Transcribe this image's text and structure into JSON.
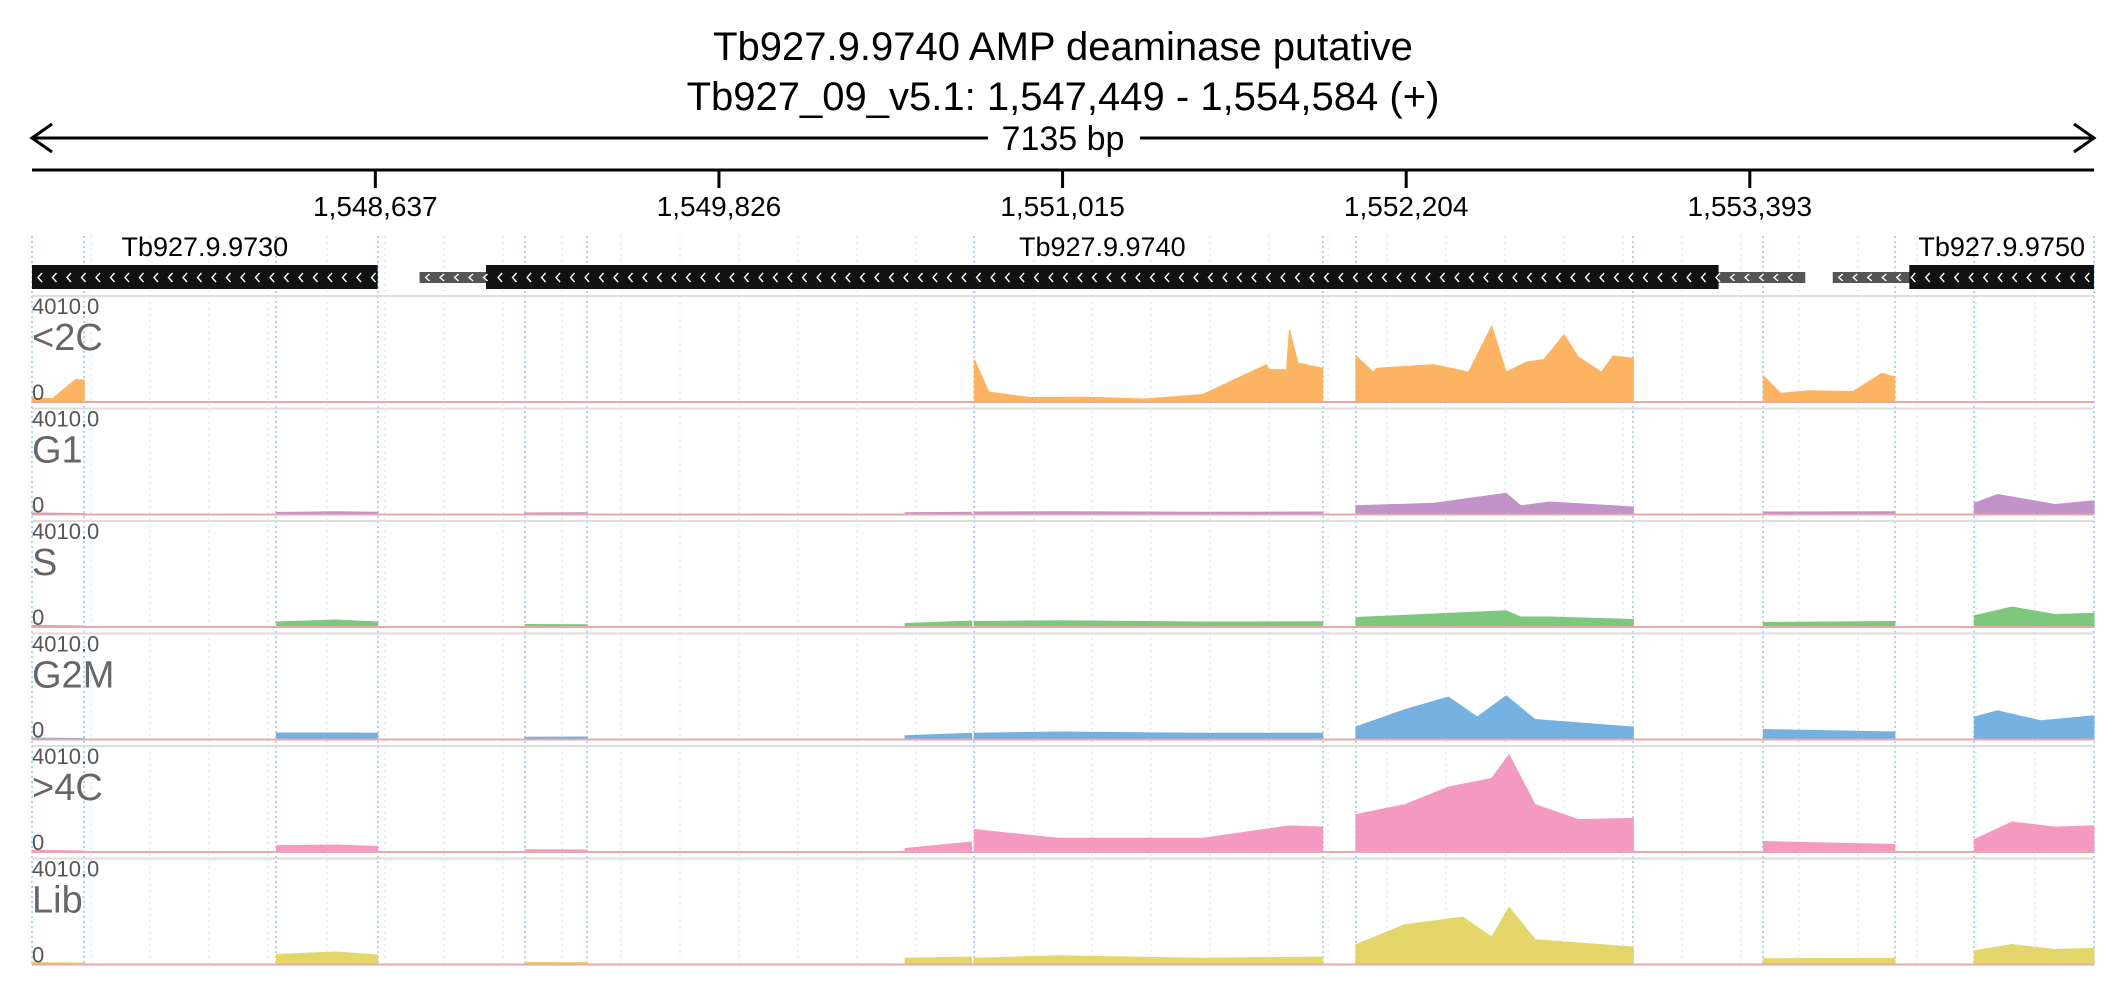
{
  "header": {
    "title": "Tb927.9.9740  AMP deaminase  putative",
    "location": "Tb927_09_v5.1: 1,547,449 - 1,554,584 (+)",
    "span_label": "7135 bp"
  },
  "chart_data": {
    "type": "area",
    "x_unit": "bp",
    "xlim": [
      1547449,
      1554584
    ],
    "ticks": [
      {
        "value": 1548637,
        "label": "1,548,637"
      },
      {
        "value": 1549826,
        "label": "1,549,826"
      },
      {
        "value": 1551015,
        "label": "1,551,015"
      },
      {
        "value": 1552204,
        "label": "1,552,204"
      },
      {
        "value": 1553393,
        "label": "1,553,393"
      }
    ],
    "genes": [
      {
        "name": "Tb927.9.9730",
        "utr": [
          1547449,
          1548645
        ],
        "cds": [
          1547449,
          1548645
        ],
        "strand": "-"
      },
      {
        "name": "Tb927.9.9740",
        "utr": [
          1548790,
          1553585
        ],
        "cds": [
          1549020,
          1553285
        ],
        "strand": "-"
      },
      {
        "name": "Tb927.9.9750",
        "utr": [
          1553680,
          1554584
        ],
        "cds": [
          1553945,
          1554620
        ],
        "strand": "-"
      }
    ],
    "exon_blocks": [
      [
        1547449,
        1547630
      ],
      [
        1548295,
        1548645
      ],
      [
        1549155,
        1549370
      ],
      [
        1550710,
        1551915
      ],
      [
        1552030,
        1552990
      ],
      [
        1553440,
        1553895
      ],
      [
        1554170,
        1554584
      ]
    ],
    "ylim": [
      0,
      4010.0
    ],
    "y_max_label": "4010.0",
    "y_min_label": "0",
    "tracks": [
      {
        "name": "<2C",
        "color": "#fdb462",
        "segments": [
          {
            "x": [
              1547449,
              1547520,
              1547600,
              1547630
            ],
            "y": [
              150,
              140,
              900,
              880
            ]
          },
          {
            "x": [
              1550710,
              1550760,
              1550900,
              1551100,
              1551300,
              1551500,
              1551720,
              1551730,
              1551790,
              1551800,
              1551830,
              1551840,
              1551870,
              1551900,
              1551915
            ],
            "y": [
              1700,
              400,
              180,
              190,
              120,
              300,
              1500,
              1300,
              1300,
              2900,
              1550,
              1550,
              1450,
              1400,
              1350
            ]
          },
          {
            "x": [
              1552030,
              1552090,
              1552100,
              1552300,
              1552420,
              1552500,
              1552550,
              1552620,
              1552680,
              1552750,
              1552800,
              1552880,
              1552920,
              1552990
            ],
            "y": [
              1850,
              1200,
              1350,
              1500,
              1200,
              3050,
              1200,
              1600,
              1700,
              2700,
              1800,
              1200,
              1850,
              1750
            ]
          },
          {
            "x": [
              1553440,
              1553500,
              1553600,
              1553750,
              1553850,
              1553895
            ],
            "y": [
              1050,
              350,
              450,
              420,
              1150,
              1000
            ]
          }
        ]
      },
      {
        "name": "G1",
        "color": "#c193c8",
        "segments": [
          {
            "x": [
              1547449,
              1547630
            ],
            "y": [
              60,
              40
            ]
          },
          {
            "x": [
              1548295,
              1548500,
              1548645
            ],
            "y": [
              80,
              110,
              90
            ]
          },
          {
            "x": [
              1549155,
              1549370
            ],
            "y": [
              60,
              70
            ]
          },
          {
            "x": [
              1550470,
              1550700
            ],
            "y": [
              70,
              90
            ]
          },
          {
            "x": [
              1550710,
              1551000,
              1551500,
              1551915
            ],
            "y": [
              100,
              110,
              90,
              100
            ]
          },
          {
            "x": [
              1552030,
              1552300,
              1552550,
              1552600,
              1552700,
              1552990
            ],
            "y": [
              350,
              450,
              850,
              350,
              500,
              300
            ]
          },
          {
            "x": [
              1553440,
              1553895
            ],
            "y": [
              100,
              110
            ]
          },
          {
            "x": [
              1554170,
              1554250,
              1554450,
              1554584
            ],
            "y": [
              450,
              800,
              400,
              550
            ]
          }
        ]
      },
      {
        "name": "S",
        "color": "#7dc87d",
        "segments": [
          {
            "x": [
              1547449,
              1547630
            ],
            "y": [
              60,
              40
            ]
          },
          {
            "x": [
              1548295,
              1548500,
              1548645
            ],
            "y": [
              200,
              280,
              200
            ]
          },
          {
            "x": [
              1549155,
              1549370
            ],
            "y": [
              100,
              90
            ]
          },
          {
            "x": [
              1550470,
              1550700
            ],
            "y": [
              140,
              240
            ]
          },
          {
            "x": [
              1550710,
              1551000,
              1551500,
              1551915
            ],
            "y": [
              220,
              250,
              200,
              210
            ]
          },
          {
            "x": [
              1552030,
              1552300,
              1552550,
              1552600,
              1552700,
              1552990
            ],
            "y": [
              380,
              520,
              650,
              400,
              400,
              300
            ]
          },
          {
            "x": [
              1553440,
              1553895
            ],
            "y": [
              180,
              220
            ]
          },
          {
            "x": [
              1554170,
              1554300,
              1554450,
              1554584
            ],
            "y": [
              450,
              800,
              500,
              550
            ]
          }
        ]
      },
      {
        "name": "G2M",
        "color": "#74b1e0",
        "segments": [
          {
            "x": [
              1547449,
              1547630
            ],
            "y": [
              60,
              40
            ]
          },
          {
            "x": [
              1548295,
              1548500,
              1548645
            ],
            "y": [
              260,
              260,
              250
            ]
          },
          {
            "x": [
              1549155,
              1549370
            ],
            "y": [
              90,
              100
            ]
          },
          {
            "x": [
              1550470,
              1550700
            ],
            "y": [
              150,
              250
            ]
          },
          {
            "x": [
              1550710,
              1551000,
              1551500,
              1551915
            ],
            "y": [
              250,
              300,
              250,
              250
            ]
          },
          {
            "x": [
              1552030,
              1552200,
              1552350,
              1552450,
              1552550,
              1552650,
              1552990
            ],
            "y": [
              500,
              1200,
              1700,
              900,
              1750,
              800,
              500
            ]
          },
          {
            "x": [
              1553440,
              1553895
            ],
            "y": [
              400,
              300
            ]
          },
          {
            "x": [
              1554170,
              1554250,
              1554400,
              1554584
            ],
            "y": [
              900,
              1150,
              750,
              950
            ]
          }
        ]
      },
      {
        "name": ">4C",
        "color": "#f49ac1",
        "segments": [
          {
            "x": [
              1547449,
              1547630
            ],
            "y": [
              70,
              40
            ]
          },
          {
            "x": [
              1548295,
              1548500,
              1548645
            ],
            "y": [
              250,
              280,
              220
            ]
          },
          {
            "x": [
              1549155,
              1549370
            ],
            "y": [
              90,
              80
            ]
          },
          {
            "x": [
              1550470,
              1550700
            ],
            "y": [
              140,
              400
            ]
          },
          {
            "x": [
              1550710,
              1551000,
              1551500,
              1551800,
              1551915
            ],
            "y": [
              900,
              550,
              550,
              1050,
              1000
            ]
          },
          {
            "x": [
              1552030,
              1552200,
              1552350,
              1552500,
              1552560,
              1552650,
              1552800,
              1552990
            ],
            "y": [
              1500,
              1900,
              2600,
              2950,
              3900,
              1900,
              1300,
              1350
            ]
          },
          {
            "x": [
              1553440,
              1553895
            ],
            "y": [
              420,
              300
            ]
          },
          {
            "x": [
              1554170,
              1554300,
              1554450,
              1554584
            ],
            "y": [
              500,
              1200,
              1000,
              1050
            ]
          }
        ]
      },
      {
        "name": "Lib",
        "color": "#e3d76c",
        "segments": [
          {
            "x": [
              1547449,
              1547630
            ],
            "y": [
              80,
              60
            ]
          },
          {
            "x": [
              1548295,
              1548500,
              1548645
            ],
            "y": [
              400,
              500,
              380
            ]
          },
          {
            "x": [
              1549155,
              1549370
            ],
            "y": [
              90,
              80
            ]
          },
          {
            "x": [
              1550470,
              1550700
            ],
            "y": [
              250,
              300
            ]
          },
          {
            "x": [
              1550710,
              1551000,
              1551500,
              1551915
            ],
            "y": [
              250,
              350,
              250,
              300
            ]
          },
          {
            "x": [
              1552030,
              1552200,
              1552400,
              1552500,
              1552560,
              1552650,
              1552990
            ],
            "y": [
              800,
              1600,
              1900,
              1100,
              2300,
              1000,
              700
            ]
          },
          {
            "x": [
              1553440,
              1553895
            ],
            "y": [
              230,
              250
            ]
          },
          {
            "x": [
              1554170,
              1554300,
              1554450,
              1554584
            ],
            "y": [
              550,
              800,
              600,
              650
            ]
          }
        ]
      }
    ]
  }
}
